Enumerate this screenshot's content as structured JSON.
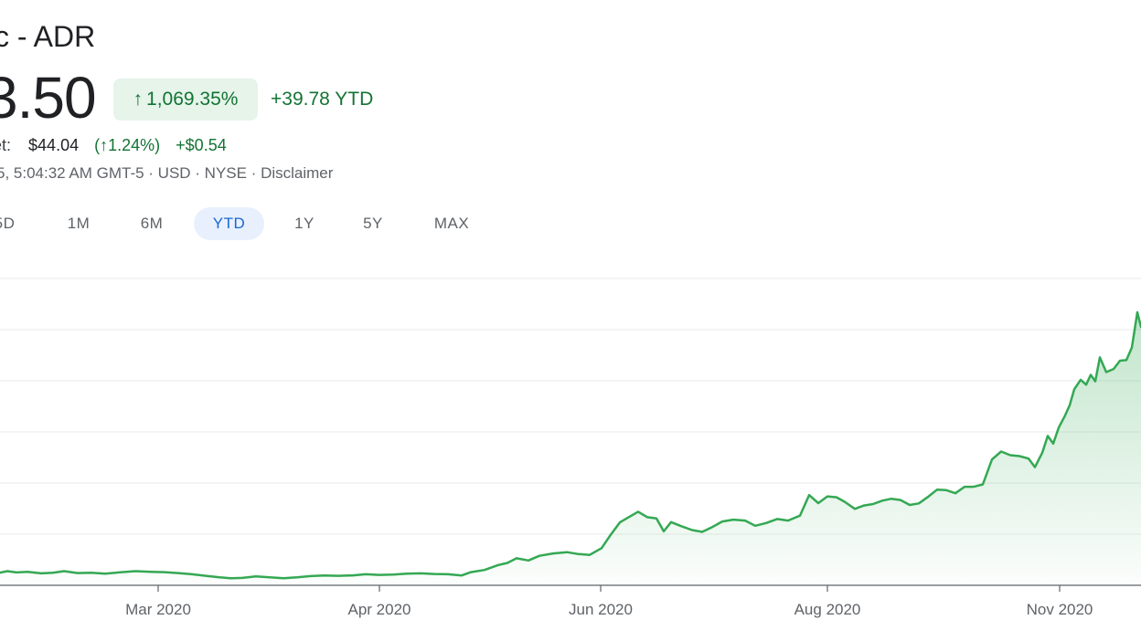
{
  "header": {
    "title": "c - ADR",
    "price": "3.50",
    "pct_change": "1,069.35%",
    "pct_arrow": "↑",
    "abs_change": "+39.78 YTD",
    "after_hours_label": "et:",
    "after_hours_price": "$44.04",
    "after_hours_pct": "(↑1.24%)",
    "after_hours_abs": "+$0.54",
    "meta": "5, 5:04:32 AM GMT-5 · USD · NYSE · Disclaimer"
  },
  "ranges": [
    "5D",
    "1M",
    "6M",
    "YTD",
    "1Y",
    "5Y",
    "MAX"
  ],
  "active_range": "YTD",
  "colors": {
    "line": "#34a853",
    "fill": "#34a853",
    "positive": "#137333",
    "grid": "#e8eaed",
    "axis": "#5f6368"
  },
  "chart_data": {
    "type": "area",
    "x_tick_labels": [
      "Mar 2020",
      "Apr 2020",
      "Jun 2020",
      "Aug 2020",
      "Nov 2020"
    ],
    "grid": true,
    "series": [
      {
        "values": [
          [
            0,
            4.1
          ],
          [
            8,
            4.6
          ],
          [
            18,
            4.2
          ],
          [
            30,
            4.4
          ],
          [
            45,
            3.9
          ],
          [
            58,
            4.1
          ],
          [
            70,
            4.6
          ],
          [
            85,
            4.0
          ],
          [
            100,
            4.1
          ],
          [
            115,
            3.8
          ],
          [
            130,
            4.2
          ],
          [
            148,
            4.6
          ],
          [
            165,
            4.4
          ],
          [
            180,
            4.3
          ],
          [
            195,
            4.0
          ],
          [
            210,
            3.6
          ],
          [
            225,
            3.1
          ],
          [
            240,
            2.6
          ],
          [
            252,
            2.3
          ],
          [
            265,
            2.4
          ],
          [
            280,
            2.9
          ],
          [
            295,
            2.6
          ],
          [
            310,
            2.3
          ],
          [
            325,
            2.6
          ],
          [
            340,
            3.0
          ],
          [
            355,
            3.2
          ],
          [
            370,
            3.1
          ],
          [
            385,
            3.2
          ],
          [
            400,
            3.6
          ],
          [
            415,
            3.4
          ],
          [
            430,
            3.5
          ],
          [
            445,
            3.8
          ],
          [
            460,
            3.9
          ],
          [
            475,
            3.7
          ],
          [
            490,
            3.6
          ],
          [
            505,
            3.2
          ],
          [
            515,
            4.3
          ],
          [
            530,
            5.0
          ],
          [
            545,
            6.6
          ],
          [
            555,
            7.3
          ],
          [
            565,
            8.8
          ],
          [
            578,
            8.1
          ],
          [
            590,
            9.6
          ],
          [
            605,
            10.4
          ],
          [
            620,
            10.8
          ],
          [
            632,
            10.2
          ],
          [
            645,
            9.9
          ],
          [
            658,
            12.1
          ],
          [
            668,
            16.5
          ],
          [
            678,
            20.5
          ],
          [
            690,
            22.6
          ],
          [
            698,
            24.0
          ],
          [
            708,
            22.2
          ],
          [
            718,
            21.8
          ],
          [
            726,
            17.6
          ],
          [
            734,
            20.6
          ],
          [
            745,
            19.3
          ],
          [
            757,
            18.0
          ],
          [
            768,
            17.4
          ],
          [
            778,
            18.8
          ],
          [
            790,
            20.8
          ],
          [
            802,
            21.4
          ],
          [
            815,
            21.1
          ],
          [
            826,
            19.4
          ],
          [
            838,
            20.3
          ],
          [
            850,
            21.6
          ],
          [
            862,
            21.1
          ],
          [
            875,
            22.7
          ],
          [
            885,
            29.4
          ],
          [
            895,
            26.8
          ],
          [
            905,
            29.0
          ],
          [
            915,
            28.7
          ],
          [
            924,
            27.2
          ],
          [
            935,
            24.9
          ],
          [
            945,
            26.0
          ],
          [
            955,
            26.5
          ],
          [
            965,
            27.6
          ],
          [
            975,
            28.2
          ],
          [
            985,
            27.8
          ],
          [
            995,
            26.2
          ],
          [
            1005,
            26.7
          ],
          [
            1015,
            28.8
          ],
          [
            1025,
            31.2
          ],
          [
            1035,
            31.0
          ],
          [
            1045,
            30.0
          ],
          [
            1055,
            32.1
          ],
          [
            1065,
            32.1
          ],
          [
            1075,
            32.9
          ],
          [
            1085,
            41.0
          ],
          [
            1095,
            43.6
          ],
          [
            1105,
            42.4
          ],
          [
            1115,
            42.1
          ],
          [
            1125,
            41.3
          ],
          [
            1132,
            38.5
          ],
          [
            1140,
            43.2
          ],
          [
            1146,
            48.7
          ],
          [
            1152,
            46.2
          ],
          [
            1158,
            51.4
          ],
          [
            1165,
            55.4
          ],
          [
            1170,
            58.7
          ],
          [
            1175,
            63.9
          ],
          [
            1182,
            67.0
          ],
          [
            1188,
            65.4
          ],
          [
            1193,
            68.6
          ],
          [
            1198,
            66.5
          ],
          [
            1203,
            74.3
          ],
          [
            1210,
            69.5
          ],
          [
            1218,
            70.5
          ],
          [
            1225,
            73.2
          ],
          [
            1232,
            73.4
          ],
          [
            1238,
            77.5
          ],
          [
            1244,
            89.0
          ],
          [
            1248,
            84.2
          ]
        ]
      }
    ]
  }
}
